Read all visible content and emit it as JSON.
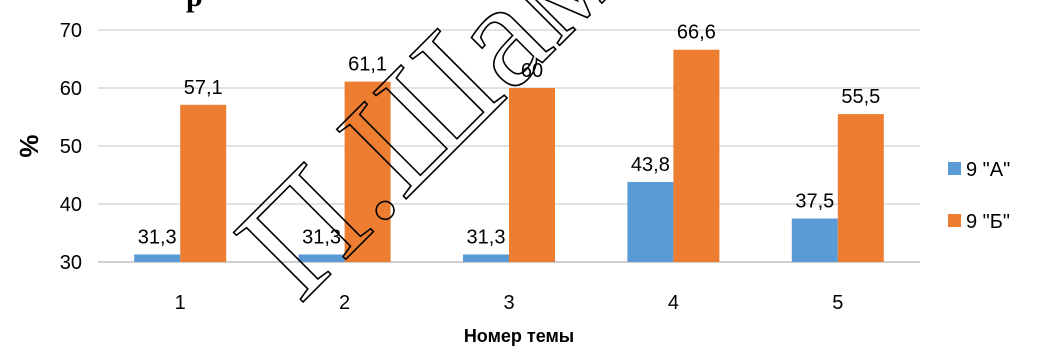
{
  "title_fragment": "р",
  "watermark": "П.Шамяк",
  "colors": {
    "series_a": "#5B9BD5",
    "series_b": "#ED7D31",
    "grid": "#D9D9D9",
    "axis": "#BFBFBF"
  },
  "chart_data": {
    "type": "bar",
    "categories": [
      "1",
      "2",
      "3",
      "4",
      "5"
    ],
    "series": [
      {
        "name": "9 \"А\"",
        "values": [
          31.3,
          31.3,
          31.3,
          43.8,
          37.5
        ],
        "labels": [
          "31,3",
          "31,3",
          "31,3",
          "43,8",
          "37,5"
        ],
        "color": "#5B9BD5"
      },
      {
        "name": "9 \"Б\"",
        "values": [
          57.1,
          61.1,
          60,
          66.6,
          55.5
        ],
        "labels": [
          "57,1",
          "61,1",
          "60",
          "66,6",
          "55,5"
        ],
        "color": "#ED7D31"
      }
    ],
    "xlabel": "Номер темы",
    "ylabel": "%",
    "ylim": [
      30,
      70
    ],
    "yticks": [
      "30",
      "40",
      "50",
      "60",
      "70"
    ],
    "grid": true,
    "legend": "right"
  }
}
